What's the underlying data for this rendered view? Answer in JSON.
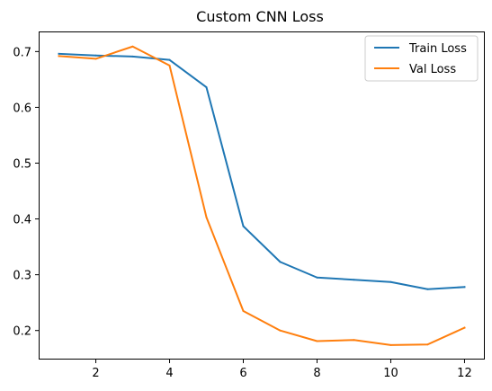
{
  "chart_data": {
    "type": "line",
    "title": "Custom CNN Loss",
    "xlabel": "",
    "ylabel": "",
    "x": [
      1,
      2,
      3,
      4,
      5,
      6,
      7,
      8,
      9,
      10,
      11,
      12
    ],
    "xlim": [
      0.45,
      12.55
    ],
    "ylim": [
      0.148,
      0.736
    ],
    "xticks": [
      2,
      4,
      6,
      8,
      10,
      12
    ],
    "yticks": [
      0.2,
      0.3,
      0.4,
      0.5,
      0.6,
      0.7
    ],
    "xtick_labels": [
      "2",
      "4",
      "6",
      "8",
      "10",
      "12"
    ],
    "ytick_labels": [
      "0.2",
      "0.3",
      "0.4",
      "0.5",
      "0.6",
      "0.7"
    ],
    "grid": false,
    "legend_position": "top-right",
    "series": [
      {
        "name": "Train Loss",
        "color": "#1f77b4",
        "values": [
          0.696,
          0.693,
          0.691,
          0.685,
          0.636,
          0.387,
          0.323,
          0.295,
          0.291,
          0.287,
          0.274,
          0.278
        ]
      },
      {
        "name": "Val Loss",
        "color": "#ff7f0e",
        "values": [
          0.692,
          0.687,
          0.709,
          0.675,
          0.403,
          0.235,
          0.2,
          0.181,
          0.183,
          0.174,
          0.175,
          0.205
        ]
      }
    ]
  }
}
